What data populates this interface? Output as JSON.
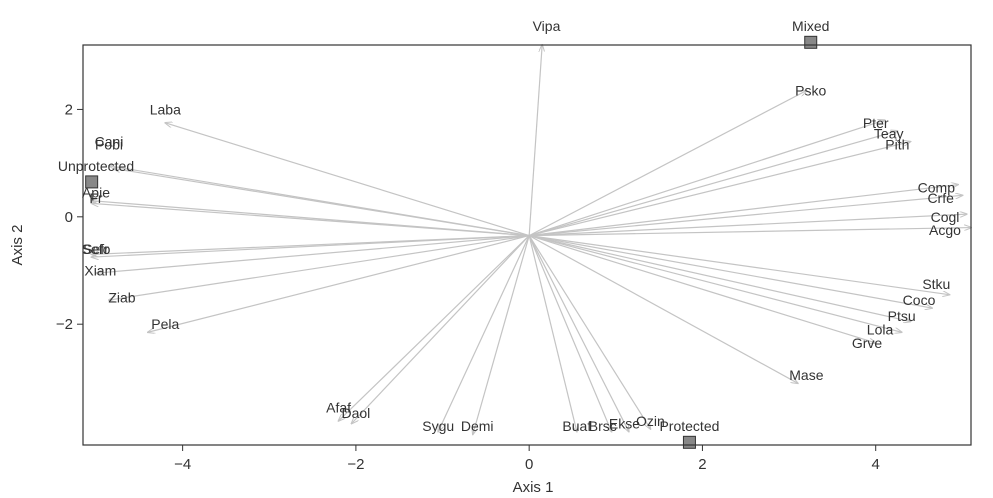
{
  "chart_data": {
    "type": "scatter",
    "subtype": "biplot",
    "title": "",
    "xlabel": "Axis 1",
    "ylabel": "Axis 2",
    "xlim": [
      -5.15,
      5.1
    ],
    "ylim": [
      -4.25,
      3.2
    ],
    "xticks": [
      -4,
      -2,
      0,
      2,
      4
    ],
    "yticks": [
      -2,
      0,
      2
    ],
    "grid": false,
    "legend": "none",
    "origin": [
      0,
      -0.35
    ],
    "colors": {
      "arrow": "#c4c4c4",
      "axis": "#333333",
      "text": "#333333",
      "marker_fill": "#888888",
      "marker_edge": "#333333"
    },
    "vectors": [
      {
        "name": "Vipa",
        "x": 0.15,
        "y": 3.2
      },
      {
        "name": "Psko",
        "x": 3.2,
        "y": 2.35
      },
      {
        "name": "Pter",
        "x": 4.1,
        "y": 1.8
      },
      {
        "name": "Teay",
        "x": 4.25,
        "y": 1.6
      },
      {
        "name": "Pith",
        "x": 4.4,
        "y": 1.4
      },
      {
        "name": "Comp",
        "x": 4.95,
        "y": 0.6
      },
      {
        "name": "Crfe",
        "x": 5.0,
        "y": 0.4
      },
      {
        "name": "Cogl",
        "x": 5.05,
        "y": 0.05
      },
      {
        "name": "Acgo",
        "x": 5.1,
        "y": -0.2
      },
      {
        "name": "Stku",
        "x": 4.85,
        "y": -1.45
      },
      {
        "name": "Coco",
        "x": 4.65,
        "y": -1.7
      },
      {
        "name": "Ptsu",
        "x": 4.4,
        "y": -1.95
      },
      {
        "name": "Lola",
        "x": 4.3,
        "y": -2.15
      },
      {
        "name": "Grve",
        "x": 4.0,
        "y": -2.35
      },
      {
        "name": "Mase",
        "x": 3.1,
        "y": -3.1
      },
      {
        "name": "Ozin",
        "x": 1.4,
        "y": -3.95
      },
      {
        "name": "Ekse",
        "x": 1.15,
        "y": -4.0
      },
      {
        "name": "Brsc",
        "x": 0.95,
        "y": -4.0
      },
      {
        "name": "Buaf",
        "x": 0.55,
        "y": -4.0
      },
      {
        "name": "Demi",
        "x": -0.65,
        "y": -4.05
      },
      {
        "name": "Sygu",
        "x": -1.05,
        "y": -4.0
      },
      {
        "name": "Daol",
        "x": -2.05,
        "y": -3.85
      },
      {
        "name": "Afaf",
        "x": -2.2,
        "y": -3.8
      },
      {
        "name": "Pela",
        "x": -4.4,
        "y": -2.15
      },
      {
        "name": "Ziab",
        "x": -4.85,
        "y": -1.55
      },
      {
        "name": "Xiam",
        "x": -5.0,
        "y": -1.05
      },
      {
        "name": "Sefo",
        "x": -5.05,
        "y": -0.75
      },
      {
        "name": "Sefr",
        "x": -5.05,
        "y": -0.7
      },
      {
        "name": "Apie",
        "x": -5.05,
        "y": 0.25
      },
      {
        "name": "Fr",
        "x": -5.05,
        "y": 0.3
      },
      {
        "name": "Cani",
        "x": -4.85,
        "y": 0.95
      },
      {
        "name": "Pobi",
        "x": -4.8,
        "y": 0.9
      },
      {
        "name": "Laba",
        "x": -4.2,
        "y": 1.75
      }
    ],
    "labels": [
      {
        "text": "Vipa",
        "x": 0.2,
        "y": 3.55
      },
      {
        "text": "Psko",
        "x": 3.25,
        "y": 2.35
      },
      {
        "text": "Pter",
        "x": 4.0,
        "y": 1.75
      },
      {
        "text": "Teay",
        "x": 4.15,
        "y": 1.55
      },
      {
        "text": "Pith",
        "x": 4.25,
        "y": 1.35
      },
      {
        "text": "Comp",
        "x": 4.7,
        "y": 0.55
      },
      {
        "text": "Crfe",
        "x": 4.75,
        "y": 0.35
      },
      {
        "text": "Cogl",
        "x": 4.8,
        "y": 0.0
      },
      {
        "text": "Acgo",
        "x": 4.8,
        "y": -0.25
      },
      {
        "text": "Stku",
        "x": 4.7,
        "y": -1.25
      },
      {
        "text": "Coco",
        "x": 4.5,
        "y": -1.55
      },
      {
        "text": "Ptsu",
        "x": 4.3,
        "y": -1.85
      },
      {
        "text": "Lola",
        "x": 4.05,
        "y": -2.1
      },
      {
        "text": "Grve",
        "x": 3.9,
        "y": -2.35
      },
      {
        "text": "Mase",
        "x": 3.2,
        "y": -2.95
      },
      {
        "text": "Ozin",
        "x": 1.4,
        "y": -3.8
      },
      {
        "text": "Ekse",
        "x": 1.1,
        "y": -3.85
      },
      {
        "text": "Brsc",
        "x": 0.85,
        "y": -3.9
      },
      {
        "text": "Buaf",
        "x": 0.55,
        "y": -3.9
      },
      {
        "text": "Demi",
        "x": -0.6,
        "y": -3.9
      },
      {
        "text": "Sygu",
        "x": -1.05,
        "y": -3.9
      },
      {
        "text": "Daol",
        "x": -2.0,
        "y": -3.65
      },
      {
        "text": "Afaf",
        "x": -2.2,
        "y": -3.55
      },
      {
        "text": "Pela",
        "x": -4.2,
        "y": -2.0
      },
      {
        "text": "Ziab",
        "x": -4.7,
        "y": -1.5
      },
      {
        "text": "Xiam",
        "x": -4.95,
        "y": -1.0
      },
      {
        "text": "Sefo",
        "x": -5.0,
        "y": -0.6
      },
      {
        "text": "Sefr",
        "x": -5.0,
        "y": -0.6
      },
      {
        "text": "Apie",
        "x": -5.0,
        "y": 0.45
      },
      {
        "text": "Fr",
        "x": -5.0,
        "y": 0.35
      },
      {
        "text": "Cani",
        "x": -4.85,
        "y": 1.4
      },
      {
        "text": "Pobi",
        "x": -4.85,
        "y": 1.35
      },
      {
        "text": "Laba",
        "x": -4.2,
        "y": 2.0
      }
    ],
    "groups": [
      {
        "name": "Unprotected",
        "x": -5.05,
        "y": 0.65,
        "label_x": -5.0,
        "label_y": 0.95
      },
      {
        "name": "Mixed",
        "x": 3.25,
        "y": 3.25,
        "label_x": 3.25,
        "label_y": 3.55
      },
      {
        "name": "Protected",
        "x": 1.85,
        "y": -4.2,
        "label_x": 1.85,
        "label_y": -3.9
      }
    ]
  }
}
